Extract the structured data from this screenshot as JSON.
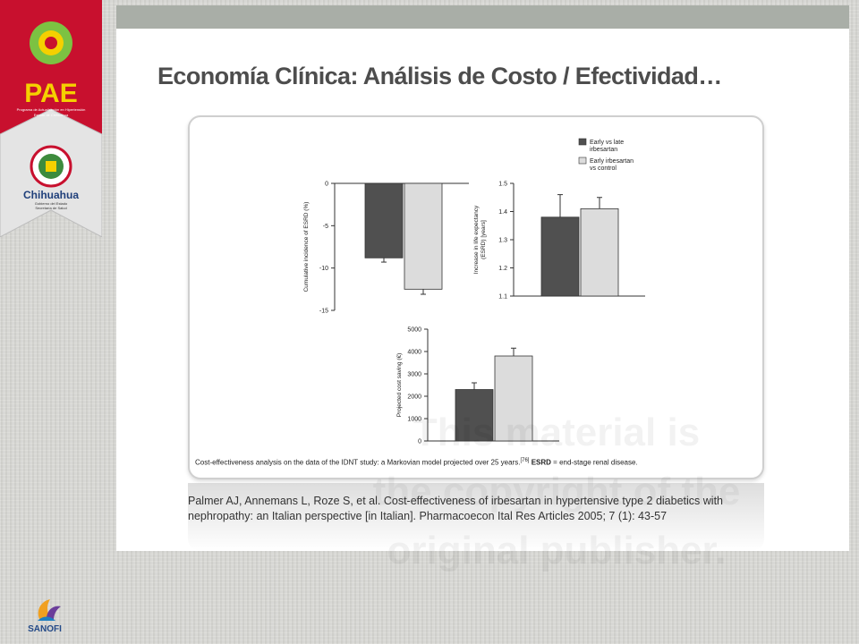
{
  "slide": {
    "title": "Economía Clínica: Análisis de Costo / Efectividad…",
    "caption_main": "Cost-effectiveness analysis on the data of the IDNT study: a Markovian model projected over 25 years.",
    "caption_ref": "[76]",
    "caption_abbr": "ESRD",
    "caption_def": "= end-stage renal disease.",
    "reference_line1": "Palmer AJ, Annemans L, Roze S, et al. Cost-effectiveness of irbesartan in  hypertensive type 2 diabetics with",
    "reference_line2": "nephropathy: an Italian perspective [in Italian]. Pharmacoecon Ital Res Articles 2005; 7 (1): 43-57"
  },
  "branding": {
    "pae_logo_text": "PAE",
    "pae_subtitle_1": "Programa de Actualización en Hipertensión",
    "pae_subtitle_2": "Estado de Chihuahua",
    "chihuahua_text": "Chihuahua",
    "chihuahua_sub_1": "Gobierno del Estado",
    "chihuahua_sub_2": "Secretaría de Salud",
    "sanofi_text": "SANOFI"
  },
  "watermark": {
    "line1": "This material is",
    "line2": "the copyright of the",
    "line3": "original publisher."
  },
  "colors": {
    "dark_bar": "#505050",
    "light_bar": "#dcdcdc",
    "ribbon_red": "#c8102e",
    "topbar": "#a9aea7"
  },
  "chart_data": [
    {
      "type": "bar",
      "id": "cumulative-incidence",
      "ylabel": "Cumulative incidence of ESRD (%)",
      "ylim": [
        -15,
        0
      ],
      "yticks": [
        0,
        -5,
        -10,
        -15
      ],
      "series": [
        {
          "name": "Early vs late irbesartan",
          "values": [
            -8.8
          ],
          "error": [
            0.5
          ]
        },
        {
          "name": "Early irbesartan vs control",
          "values": [
            -12.5
          ],
          "error": [
            0.6
          ]
        }
      ]
    },
    {
      "type": "bar",
      "id": "life-expectancy",
      "ylabel_line1": "Increase in life expectancy",
      "ylabel_line2": "(ESRD) [years]",
      "ylim": [
        1.1,
        1.5
      ],
      "yticks": [
        1.1,
        1.2,
        1.3,
        1.4,
        1.5
      ],
      "series": [
        {
          "name": "Early vs late irbesartan",
          "values": [
            1.38
          ],
          "error": [
            0.08
          ]
        },
        {
          "name": "Early irbesartan vs control",
          "values": [
            1.41
          ],
          "error": [
            0.04
          ]
        }
      ]
    },
    {
      "type": "bar",
      "id": "cost-saving",
      "ylabel": "Projected cost saving (€)",
      "ylim": [
        0,
        5000
      ],
      "yticks": [
        0,
        1000,
        2000,
        3000,
        4000,
        5000
      ],
      "series": [
        {
          "name": "Early vs late irbesartan",
          "values": [
            2300
          ],
          "error": [
            300
          ]
        },
        {
          "name": "Early irbesartan vs control",
          "values": [
            3800
          ],
          "error": [
            350
          ]
        }
      ]
    }
  ],
  "legend": {
    "items": [
      {
        "line1": "Early vs late",
        "line2": "irbesartan"
      },
      {
        "line1": "Early irbesartan",
        "line2": "vs control"
      }
    ]
  }
}
